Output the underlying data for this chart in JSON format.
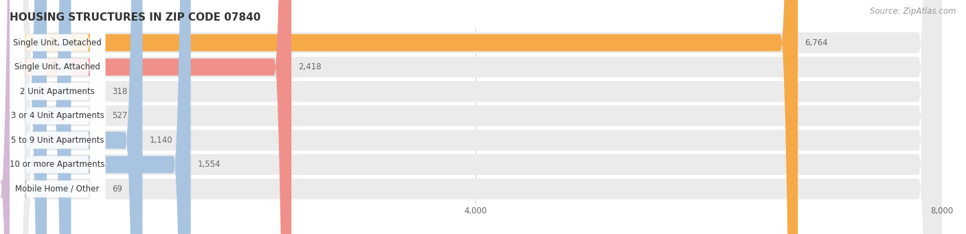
{
  "title": "HOUSING STRUCTURES IN ZIP CODE 07840",
  "source": "Source: ZipAtlas.com",
  "categories": [
    "Single Unit, Detached",
    "Single Unit, Attached",
    "2 Unit Apartments",
    "3 or 4 Unit Apartments",
    "5 to 9 Unit Apartments",
    "10 or more Apartments",
    "Mobile Home / Other"
  ],
  "values": [
    6764,
    2418,
    318,
    527,
    1140,
    1554,
    69
  ],
  "bar_colors": [
    "#f5a947",
    "#f0908a",
    "#a8c4e0",
    "#a8c4e0",
    "#a8c4e0",
    "#a8c4e0",
    "#d4b8d4"
  ],
  "row_bg_color": "#ebebeb",
  "xlim": [
    0,
    8000
  ],
  "xticks": [
    0,
    4000,
    8000
  ],
  "title_fontsize": 11,
  "source_fontsize": 8.5,
  "label_fontsize": 8.5,
  "value_fontsize": 8.5,
  "background_color": "#ffffff"
}
